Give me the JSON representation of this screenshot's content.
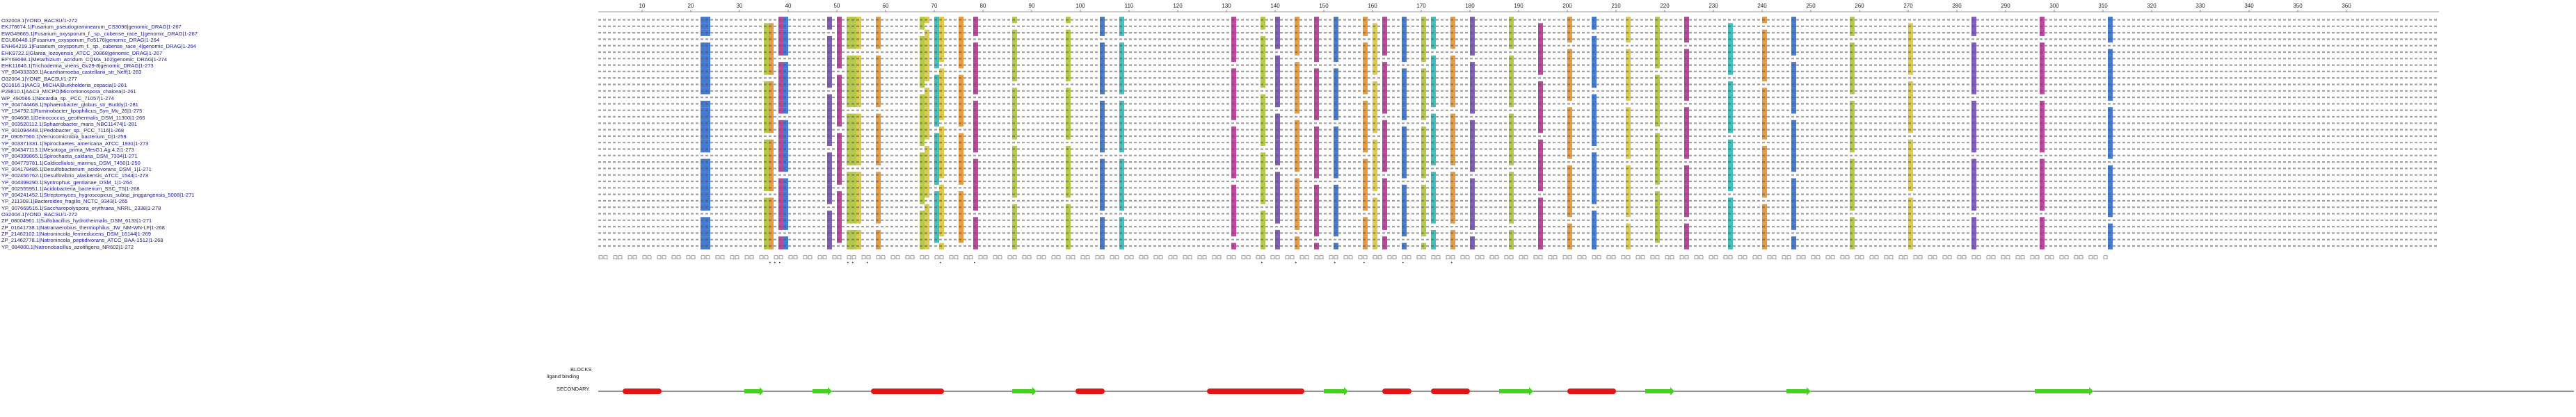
{
  "ruler": {
    "start": 1,
    "end": 379,
    "labels": [
      10,
      20,
      30,
      40,
      50,
      60,
      70,
      80,
      90,
      100,
      110,
      120,
      130,
      140,
      150,
      160,
      170,
      180,
      190,
      200,
      210,
      220,
      230,
      240,
      250,
      260,
      270,
      280,
      290,
      300,
      310,
      320,
      330,
      340,
      350,
      360
    ]
  },
  "sequences": [
    "O32003.1|YOND_BACSU/1-272",
    "EKJ78674.1|Fusarium_pseudograminearum_CS3096|genomic_DRAG|1-267",
    "EWG49665.1|Fusarium_oxysporum_f._sp._cubense_race_1|genomic_DRAG|1-267",
    "EGU80448.1|Fusarium_oxysporum_Fo5176|genomic_DRAG|1-264",
    "ENH64219.1|Fusarium_oxysporum_f._sp._cubense_race_4|genomic_DRAG|1-264",
    "EHK9722.1|Glarea_lozoyensis_ATCC_20868|genomic_DRAG|1-267",
    "EFY69098.1|Metarhizium_acridum_CQMa_102|genomic_DRAG|1-274",
    "EHK11646.1|Trichoderma_virens_Gv29-8|genomic_DRAG|1-273",
    "YP_004333339.1|Acanthamoeba_castellanii_str_Neff|1-283",
    "O32004.1|YONE_BACSU/1-277",
    "Q01616.1|AAC3_MICHA|Burkholderia_cepacia|1-261",
    "P29810.1|AAC3_MICPO|Micromonospora_chalcea|1-261",
    "WP_490566.1|Nocardia_sp._PCC_71057|1-274",
    "YP_004744468.1|Sphaerobacter_globus_str_Buddy|1-281",
    "YP_154792.1|Ruminobacter_lipophilicus_Syn_Mv_26|1-275",
    "YP_004608.1|Deinococcus_geothermalis_DSM_11300|1-266",
    "YP_003520112.1|Sphaerobacter_maris_NBC11474|1-281",
    "YP_001094448.1|Pedobacter_sp._PCC_7116|1-268",
    "ZP_09057560.1|Verrucomicrobia_bacterium_D|1-259",
    "YP_003371331.1|Spirochaetes_americana_ATCC_1931|1-273",
    "YP_004347113.1|Mesotoga_prima_MesG1.Ag.4.2|1-273",
    "YP_004399865.1|Spirochaeta_caldaria_DSM_7334|1-271",
    "YP_004779781.1|Caldicellulosi_marinus_DSM_7450|1-250",
    "YP_004178486.1|Desulfobacterium_acidovorans_DSM_1|1-271",
    "YP_002456762.1|Desulfovibrio_alaskensis_ATCC_1544|1-273",
    "YP_004399290.1|Syntrophus_gentianae_DSM_1|1-264",
    "YP_002555951.1|Acidobacteria_bacterium_SSC_T5|1-268",
    "YP_004241452.1|Streptomyces_hygroscopicus_subsp_jinggangensis_5008|1-271",
    "YP_211308.1|Bacteroides_fragilis_NCTC_9343|1-265",
    "YP_007669516.1|Saccharopolyspora_erythraea_NRRL_2338|1-278",
    "O32004.1|YOND_BACSU/1-272",
    "ZP_08004961.1|Sulfobacillus_hydrothermalis_DSM_6133|1-271",
    "ZP_01641738.1|Natranaerobius_thermophilus_JW_NM-WN-LF|1-268",
    "ZP_21462102.1|Natronincola_ferrireducens_DSM_16144|1-269",
    "ZP_21462778.1|Natronincola_peptidivorans_ATCC_BAA-1512|1-268",
    "YP_084800.1|Natronobacillus_azotifigens_NR602|1-272"
  ],
  "tracks": {
    "blocks_label": "BLOCKS",
    "ligand_label": "ligand binding",
    "secondary_label": "SECONDARY"
  },
  "colors": {
    "hydrophobic": "#a7c02a",
    "acidic": "#b0258c",
    "basic": "#2563c9",
    "glycine": "#e28a1e",
    "proline": "#d6c22a",
    "cysteine": "#1fb5b0",
    "aromatic": "#6a3fb0",
    "helix": "#e41414",
    "strand": "#45d21d",
    "name": "#1a1a8c"
  },
  "secondary_structure": [
    {
      "type": "helix",
      "from": 6,
      "to": 14
    },
    {
      "type": "strand",
      "from": 31,
      "to": 35
    },
    {
      "type": "strand",
      "from": 45,
      "to": 49
    },
    {
      "type": "helix",
      "from": 57,
      "to": 72
    },
    {
      "type": "strand",
      "from": 86,
      "to": 91
    },
    {
      "type": "helix",
      "from": 99,
      "to": 105
    },
    {
      "type": "helix",
      "from": 126,
      "to": 146
    },
    {
      "type": "strand",
      "from": 150,
      "to": 155
    },
    {
      "type": "helix",
      "from": 162,
      "to": 168
    },
    {
      "type": "helix",
      "from": 172,
      "to": 180
    },
    {
      "type": "strand",
      "from": 186,
      "to": 193
    },
    {
      "type": "helix",
      "from": 200,
      "to": 210
    },
    {
      "type": "strand",
      "from": 216,
      "to": 222
    },
    {
      "type": "strand",
      "from": 245,
      "to": 250
    },
    {
      "type": "strand",
      "from": 296,
      "to": 308
    }
  ]
}
